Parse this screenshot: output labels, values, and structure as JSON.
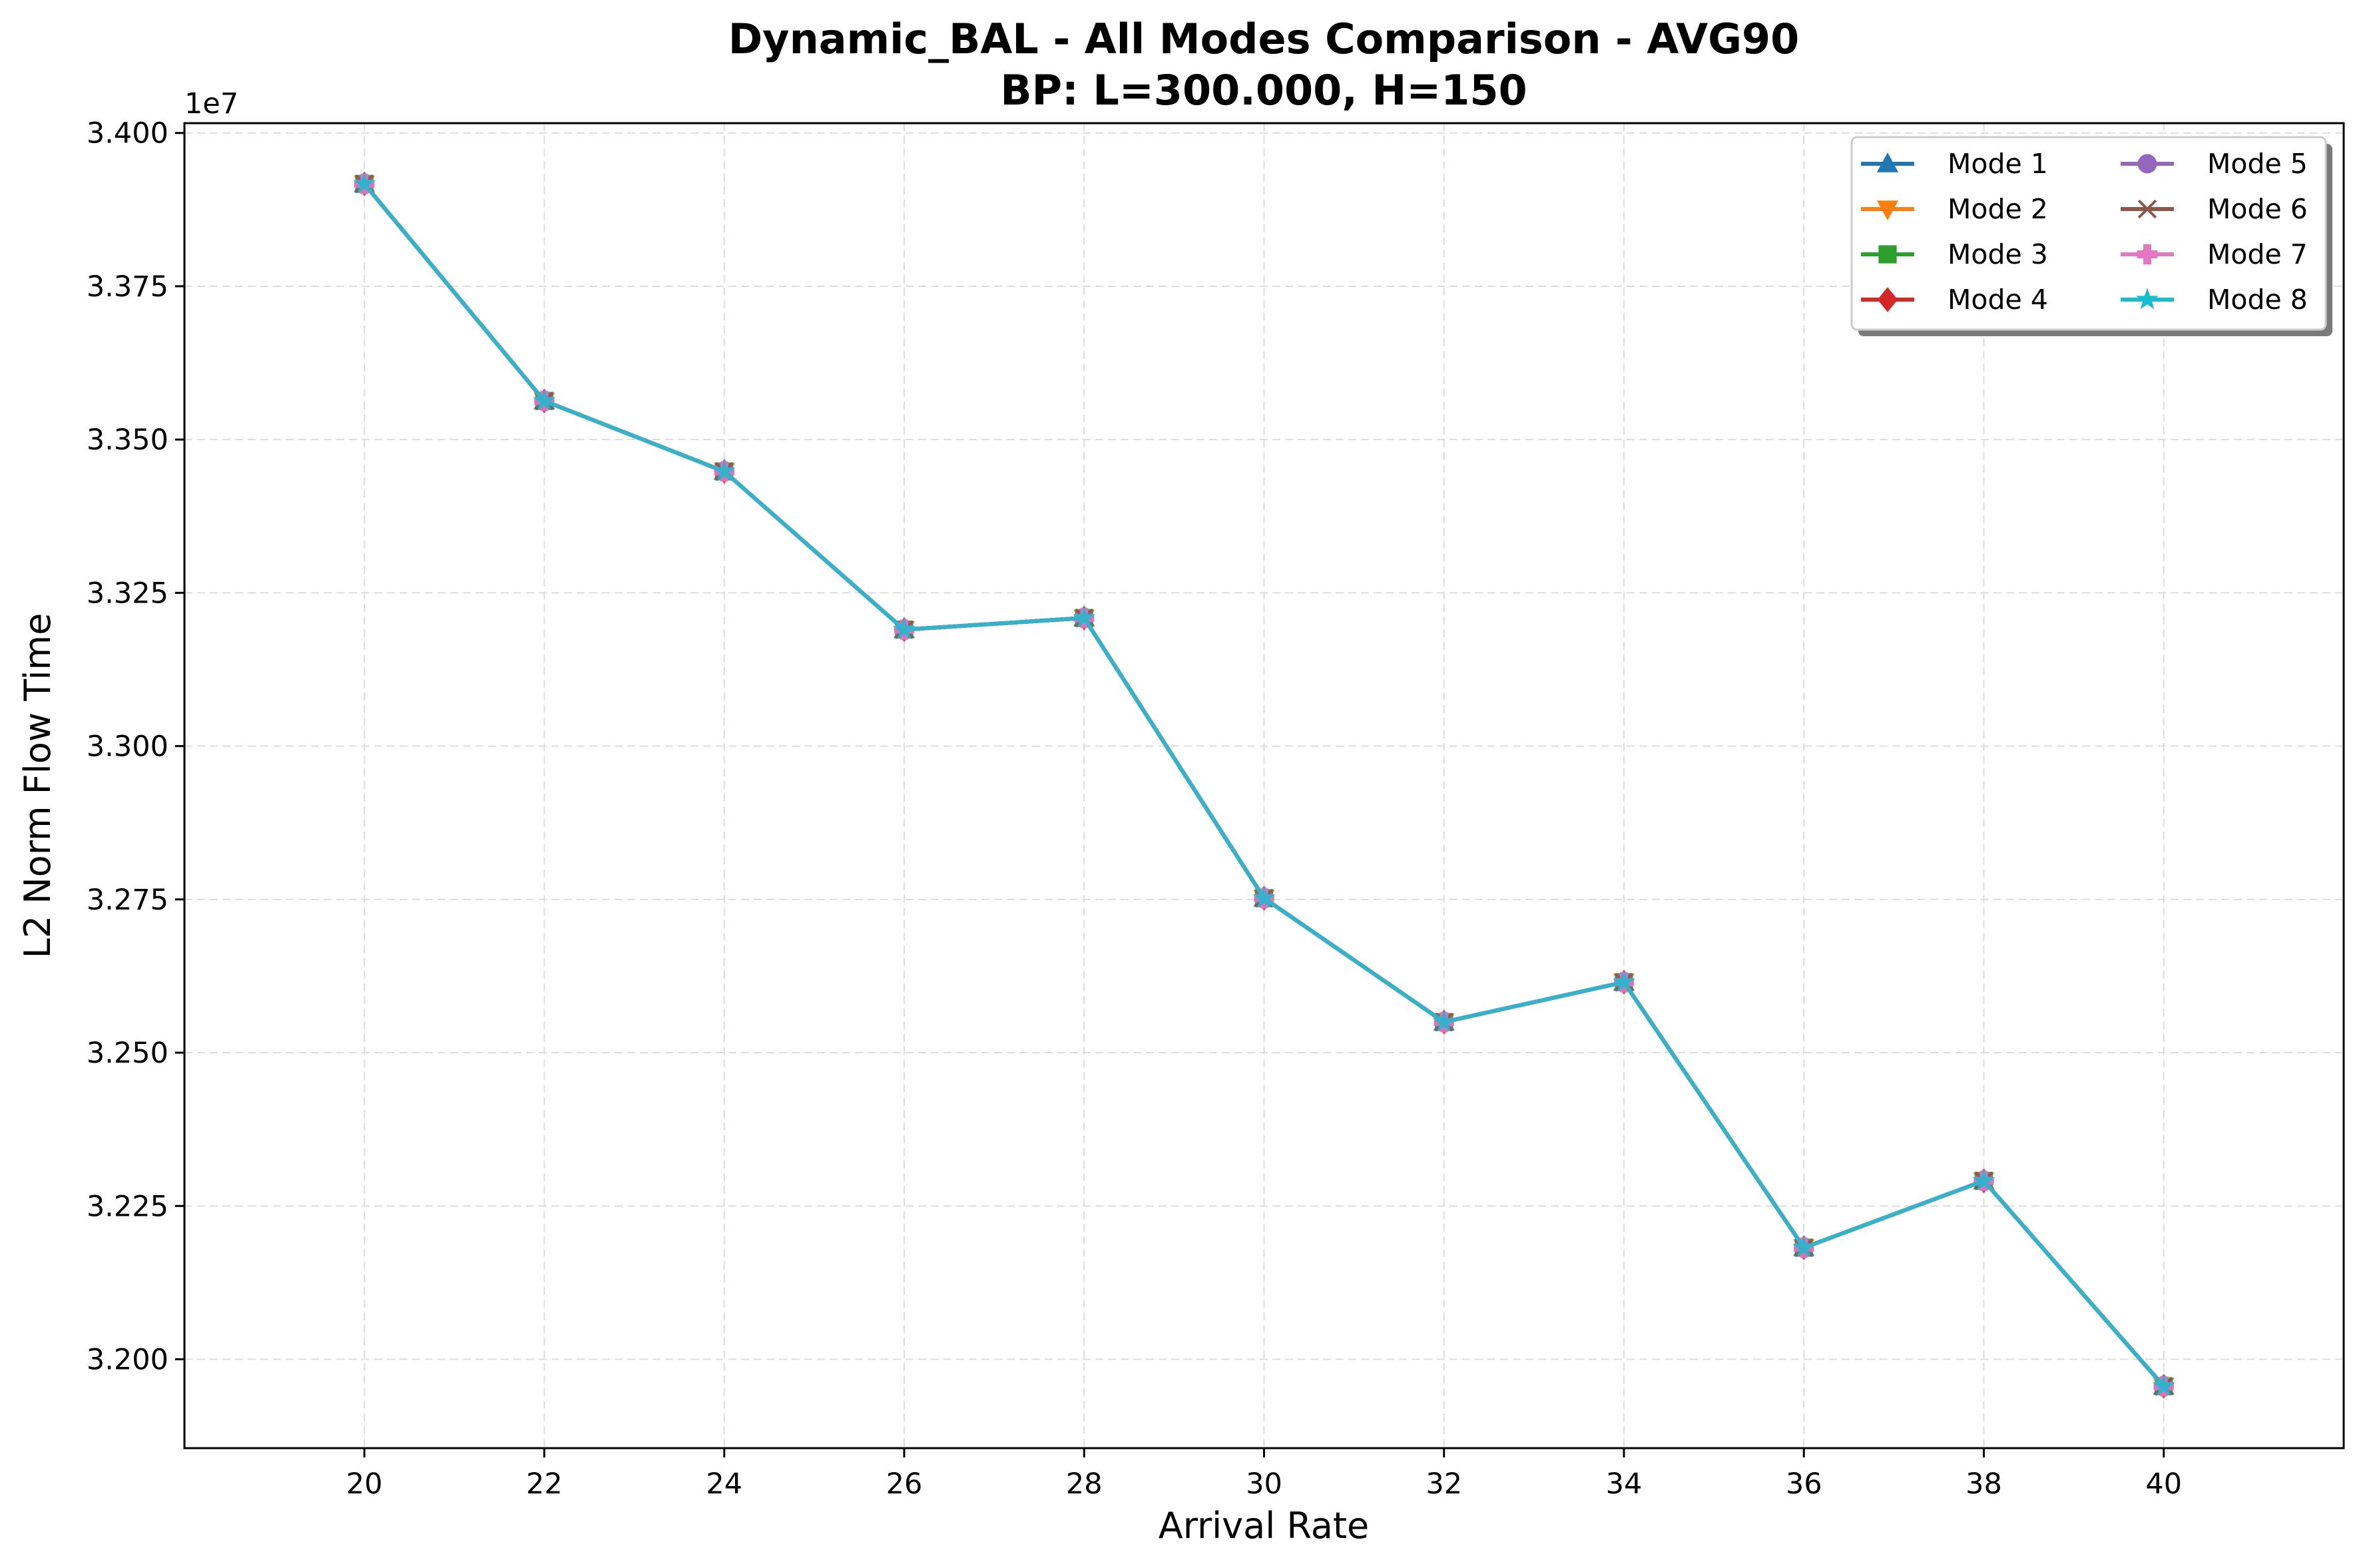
{
  "chart_data": {
    "type": "line",
    "title": "Dynamic_BAL - All Modes Comparison - AVG90",
    "subtitle": "BP: L=300.000, H=150",
    "xlabel": "Arrival Rate",
    "ylabel": "L2 Norm Flow Time",
    "y_offset_label": "1e7",
    "xlim": [
      18,
      42
    ],
    "ylim": [
      3.1855,
      3.4016
    ],
    "x_ticks": [
      20,
      22,
      24,
      26,
      28,
      30,
      32,
      34,
      36,
      38,
      40
    ],
    "y_ticks": [
      3.2,
      3.225,
      3.25,
      3.275,
      3.3,
      3.325,
      3.35,
      3.375,
      3.4
    ],
    "y_tick_labels": [
      "3.200",
      "3.225",
      "3.250",
      "3.275",
      "3.300",
      "3.325",
      "3.350",
      "3.375",
      "3.400"
    ],
    "grid": true,
    "legend_position": "top-right",
    "x": [
      20,
      22,
      24,
      26,
      28,
      30,
      32,
      34,
      36,
      38,
      40
    ],
    "series": [
      {
        "name": "Mode 1",
        "color": "#1f77b4",
        "marker": "triangle-up",
        "values": [
          3.3917,
          3.3563,
          3.3448,
          3.319,
          3.3209,
          3.2752,
          3.255,
          3.2615,
          3.2182,
          3.2291,
          3.1956
        ]
      },
      {
        "name": "Mode 2",
        "color": "#ff7f0e",
        "marker": "triangle-down",
        "values": [
          3.3917,
          3.3563,
          3.3448,
          3.319,
          3.3209,
          3.2752,
          3.255,
          3.2615,
          3.2182,
          3.2291,
          3.1956
        ]
      },
      {
        "name": "Mode 3",
        "color": "#2ca02c",
        "marker": "square",
        "values": [
          3.3917,
          3.3563,
          3.3448,
          3.319,
          3.3209,
          3.2752,
          3.255,
          3.2615,
          3.2182,
          3.2291,
          3.1956
        ]
      },
      {
        "name": "Mode 4",
        "color": "#d62728",
        "marker": "diamond",
        "values": [
          3.3917,
          3.3563,
          3.3448,
          3.319,
          3.3209,
          3.2752,
          3.255,
          3.2615,
          3.2182,
          3.2291,
          3.1956
        ]
      },
      {
        "name": "Mode 5",
        "color": "#9467bd",
        "marker": "circle",
        "values": [
          3.3917,
          3.3563,
          3.3448,
          3.319,
          3.3209,
          3.2752,
          3.255,
          3.2615,
          3.2182,
          3.2291,
          3.1956
        ]
      },
      {
        "name": "Mode 6",
        "color": "#8c564b",
        "marker": "x",
        "values": [
          3.3917,
          3.3563,
          3.3448,
          3.319,
          3.3209,
          3.2752,
          3.255,
          3.2615,
          3.2182,
          3.2291,
          3.1956
        ]
      },
      {
        "name": "Mode 7",
        "color": "#e377c2",
        "marker": "plus",
        "values": [
          3.3917,
          3.3563,
          3.3448,
          3.319,
          3.3209,
          3.2752,
          3.255,
          3.2615,
          3.2182,
          3.2291,
          3.1956
        ]
      },
      {
        "name": "Mode 8",
        "color": "#17becf",
        "marker": "star",
        "values": [
          3.3917,
          3.3563,
          3.3448,
          3.319,
          3.3209,
          3.2752,
          3.255,
          3.2615,
          3.2182,
          3.2291,
          3.1956
        ]
      }
    ]
  }
}
